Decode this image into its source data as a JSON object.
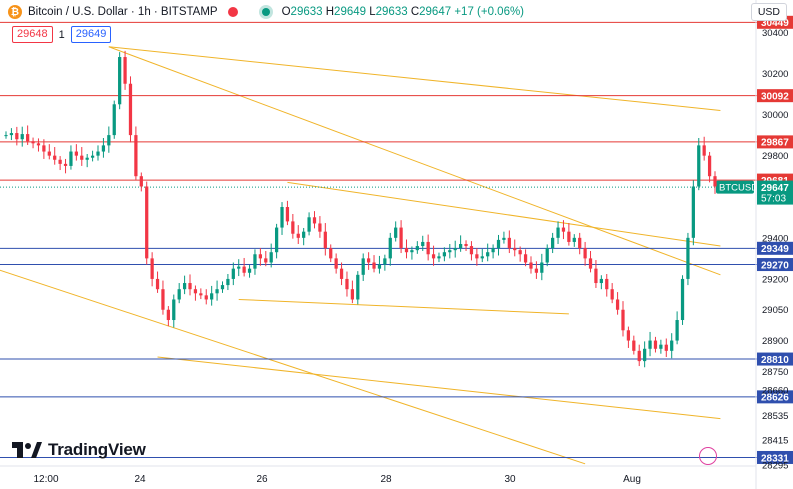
{
  "header": {
    "symbol_icon": "bitcoin-icon",
    "title": "Bitcoin / U.S. Dollar · 1h · BITSTAMP",
    "ohlc": [
      {
        "label": "O",
        "value": "29633"
      },
      {
        "label": "H",
        "value": "29649"
      },
      {
        "label": "L",
        "value": "29633"
      },
      {
        "label": "C",
        "value": "29647"
      }
    ],
    "change": "+17 (+0.06%)"
  },
  "trade": {
    "sell_price": "29648",
    "qty": "1",
    "buy_price": "29649"
  },
  "currency_label": "USD",
  "logo_text": "TradingView",
  "colors": {
    "up": "#089981",
    "down": "#f23645",
    "resistance": "#e53935",
    "support": "#2f4fae",
    "trendline": "#f0b429",
    "price_tag": "#089981"
  },
  "chart_data": {
    "type": "candlestick",
    "symbol": "BTCUSD",
    "timeframe": "1h",
    "title": "Bitcoin / U.S. Dollar · 1h · BITSTAMP",
    "ylim": [
      28270,
      30470
    ],
    "xlim": [
      -6,
      124
    ],
    "y_ticks": [
      30400,
      30200,
      30000,
      29800,
      29400,
      29200,
      29050,
      28900,
      28750,
      28660,
      28535,
      28415,
      28295
    ],
    "x_ticks": [
      {
        "label": "12:00",
        "t": 0
      },
      {
        "label": "24",
        "t": 12
      },
      {
        "label": "26",
        "t": 48
      },
      {
        "label": "28",
        "t": 84
      },
      {
        "label": "30",
        "t": 120
      }
    ],
    "x_tick_extra": [
      {
        "label": "Aug",
        "t": 156
      }
    ],
    "horizontal_levels": [
      {
        "price": 30449,
        "label": "30449",
        "kind": "resistance"
      },
      {
        "price": 30092,
        "label": "30092",
        "kind": "resistance"
      },
      {
        "price": 29867,
        "label": "29867",
        "kind": "resistance"
      },
      {
        "price": 29681,
        "label": "29681",
        "kind": "resistance"
      },
      {
        "price": 29349,
        "label": "29349",
        "kind": "support"
      },
      {
        "price": 29270,
        "label": "29270",
        "kind": "support"
      },
      {
        "price": 28810,
        "label": "28810",
        "kind": "support"
      },
      {
        "price": 28626,
        "label": "28626",
        "kind": "support"
      },
      {
        "price": 28331,
        "label": "28331",
        "kind": "support"
      }
    ],
    "current_price": {
      "label": "BTCUSD",
      "price": 29647,
      "price_label": "29647",
      "countdown": "57:03"
    },
    "closes": [
      29900,
      29910,
      29880,
      29905,
      29870,
      29860,
      29850,
      29820,
      29800,
      29780,
      29760,
      29750,
      29820,
      29800,
      29780,
      29790,
      29800,
      29820,
      29850,
      29900,
      30050,
      30280,
      30150,
      29900,
      29700,
      29650,
      29300,
      29200,
      29150,
      29050,
      29000,
      29100,
      29150,
      29180,
      29150,
      29130,
      29120,
      29100,
      29130,
      29150,
      29170,
      29200,
      29250,
      29260,
      29230,
      29250,
      29320,
      29300,
      29280,
      29330,
      29450,
      29550,
      29480,
      29420,
      29400,
      29430,
      29500,
      29470,
      29430,
      29350,
      29300,
      29250,
      29200,
      29150,
      29100,
      29220,
      29300,
      29280,
      29250,
      29270,
      29300,
      29400,
      29450,
      29350,
      29330,
      29340,
      29360,
      29380,
      29320,
      29300,
      29310,
      29330,
      29340,
      29350,
      29370,
      29360,
      29320,
      29300,
      29310,
      29330,
      29350,
      29390,
      29400,
      29350,
      29340,
      29320,
      29280,
      29250,
      29230,
      29280,
      29350,
      29400,
      29450,
      29430,
      29380,
      29400,
      29350,
      29300,
      29250,
      29180,
      29200,
      29150,
      29100,
      29050,
      28950,
      28900,
      28850,
      28800,
      28860,
      28900,
      28860,
      28880,
      28850,
      28900,
      29000,
      29200,
      29400,
      29650,
      29850,
      29800,
      29700,
      29650
    ],
    "y_axis_side": "right",
    "grid": false
  }
}
